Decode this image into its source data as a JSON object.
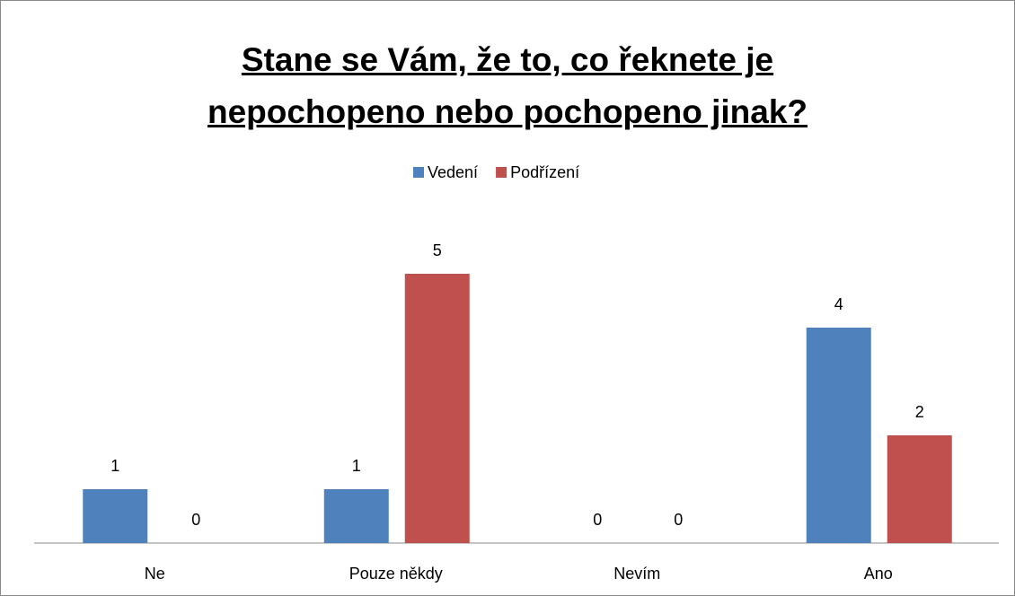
{
  "chart_data": {
    "type": "bar",
    "title": "Stane se Vám, že to, co řeknete je nepochopeno nebo pochopeno jinak?",
    "categories": [
      "Ne",
      "Pouze někdy",
      "Nevím",
      "Ano"
    ],
    "series": [
      {
        "name": "Vedení",
        "color": "#4f81bd",
        "values": [
          1,
          1,
          0,
          4
        ]
      },
      {
        "name": "Podřízení",
        "color": "#c0504d",
        "values": [
          0,
          5,
          0,
          2
        ]
      }
    ],
    "legend": "top"
  }
}
